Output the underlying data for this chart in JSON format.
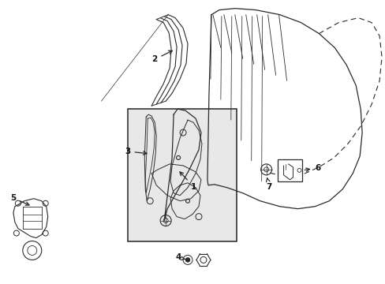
{
  "bg_color": "#ffffff",
  "line_color": "#2a2a2a",
  "label_color": "#111111",
  "box_fill": "#e8e8e8",
  "box_stroke": "#333333",
  "figsize": [
    4.89,
    3.6
  ],
  "dpi": 100
}
